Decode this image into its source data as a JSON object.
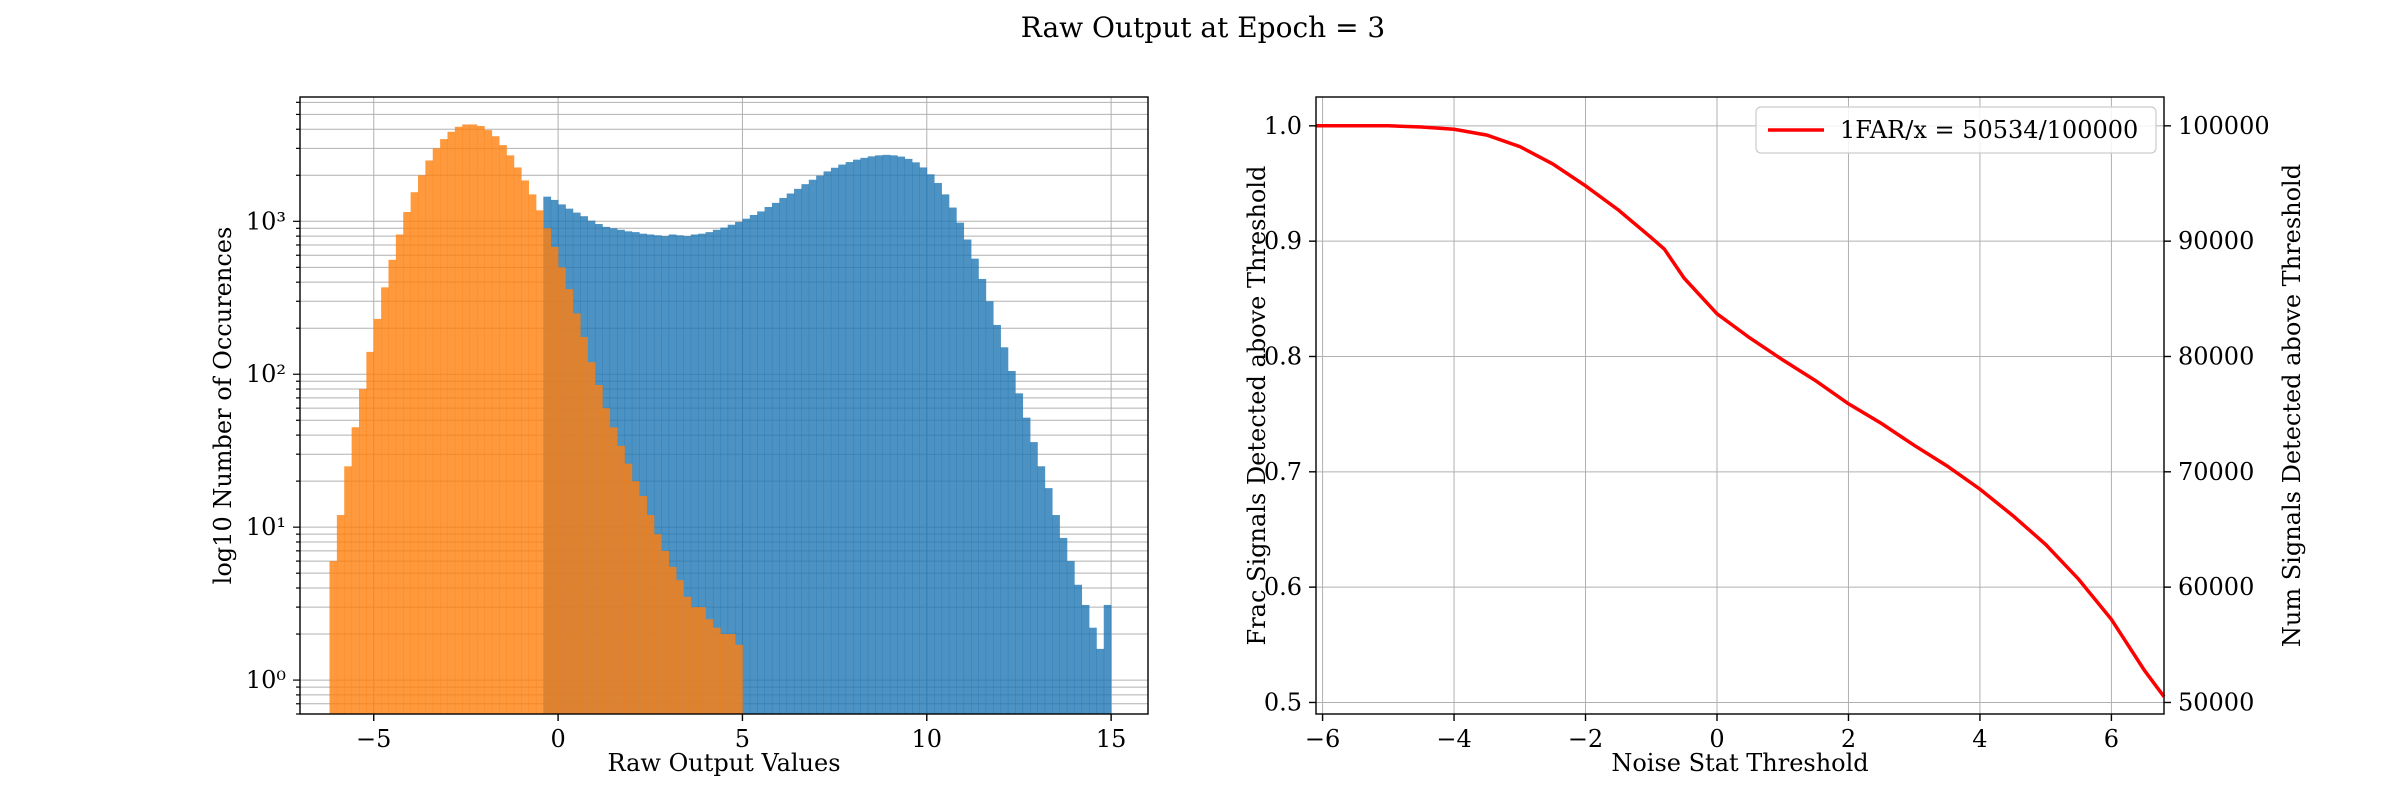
{
  "figure": {
    "title": "Raw Output at Epoch = 3"
  },
  "chart_data": [
    {
      "type": "histogram",
      "xlabel": "Raw Output Values",
      "ylabel": "log10 Number of Occurences",
      "yscale": "log",
      "xlim": [
        -7,
        16
      ],
      "ylim": [
        0.6,
        6500
      ],
      "xticks": [
        -5,
        0,
        5,
        10,
        15
      ],
      "yticks": [
        1,
        10,
        100,
        1000
      ],
      "ytick_labels": [
        "10⁰",
        "10¹",
        "10²",
        "10³"
      ],
      "grid": true,
      "bin_width": 0.2,
      "colors": {
        "signal": "#1f77b4",
        "noise": "#ff7f0e"
      },
      "series": [
        {
          "id": "signal",
          "color": "#1f77b4",
          "alpha": 0.8,
          "bins": [
            [
              -0.4,
              1450
            ],
            [
              -0.2,
              1380
            ],
            [
              0.0,
              1290
            ],
            [
              0.2,
              1210
            ],
            [
              0.4,
              1140
            ],
            [
              0.6,
              1080
            ],
            [
              0.8,
              1010
            ],
            [
              1.0,
              960
            ],
            [
              1.2,
              920
            ],
            [
              1.4,
              900
            ],
            [
              1.6,
              880
            ],
            [
              1.8,
              860
            ],
            [
              2.0,
              850
            ],
            [
              2.2,
              830
            ],
            [
              2.4,
              820
            ],
            [
              2.6,
              810
            ],
            [
              2.8,
              800
            ],
            [
              3.0,
              820
            ],
            [
              3.2,
              810
            ],
            [
              3.4,
              800
            ],
            [
              3.6,
              820
            ],
            [
              3.8,
              830
            ],
            [
              4.0,
              850
            ],
            [
              4.2,
              880
            ],
            [
              4.4,
              910
            ],
            [
              4.6,
              950
            ],
            [
              4.8,
              990
            ],
            [
              5.0,
              1040
            ],
            [
              5.2,
              1100
            ],
            [
              5.4,
              1160
            ],
            [
              5.6,
              1240
            ],
            [
              5.8,
              1320
            ],
            [
              6.0,
              1420
            ],
            [
              6.2,
              1520
            ],
            [
              6.4,
              1630
            ],
            [
              6.6,
              1750
            ],
            [
              6.8,
              1870
            ],
            [
              7.0,
              1990
            ],
            [
              7.2,
              2120
            ],
            [
              7.4,
              2240
            ],
            [
              7.6,
              2350
            ],
            [
              7.8,
              2440
            ],
            [
              8.0,
              2530
            ],
            [
              8.2,
              2600
            ],
            [
              8.4,
              2660
            ],
            [
              8.6,
              2700
            ],
            [
              8.8,
              2720
            ],
            [
              9.0,
              2700
            ],
            [
              9.2,
              2650
            ],
            [
              9.4,
              2560
            ],
            [
              9.6,
              2430
            ],
            [
              9.8,
              2250
            ],
            [
              10.0,
              2030
            ],
            [
              10.2,
              1780
            ],
            [
              10.4,
              1500
            ],
            [
              10.6,
              1230
            ],
            [
              10.8,
              980
            ],
            [
              11.0,
              760
            ],
            [
              11.2,
              570
            ],
            [
              11.4,
              420
            ],
            [
              11.6,
              300
            ],
            [
              11.8,
              210
            ],
            [
              12.0,
              150
            ],
            [
              12.2,
              105
            ],
            [
              12.4,
              75
            ],
            [
              12.6,
              52
            ],
            [
              12.8,
              36
            ],
            [
              13.0,
              25
            ],
            [
              13.2,
              18
            ],
            [
              13.4,
              12
            ],
            [
              13.6,
              8.5
            ],
            [
              13.8,
              6
            ],
            [
              14.0,
              4.2
            ],
            [
              14.2,
              3.1
            ],
            [
              14.4,
              2.2
            ],
            [
              14.6,
              1.6
            ],
            [
              14.8,
              3.1
            ]
          ]
        },
        {
          "id": "noise",
          "color": "#ff7f0e",
          "alpha": 0.8,
          "bins": [
            [
              -6.2,
              6
            ],
            [
              -6.0,
              12
            ],
            [
              -5.8,
              25
            ],
            [
              -5.6,
              45
            ],
            [
              -5.4,
              80
            ],
            [
              -5.2,
              140
            ],
            [
              -5.0,
              230
            ],
            [
              -4.8,
              370
            ],
            [
              -4.6,
              560
            ],
            [
              -4.4,
              820
            ],
            [
              -4.2,
              1150
            ],
            [
              -4.0,
              1550
            ],
            [
              -3.8,
              2000
            ],
            [
              -3.6,
              2500
            ],
            [
              -3.4,
              3000
            ],
            [
              -3.2,
              3450
            ],
            [
              -3.0,
              3850
            ],
            [
              -2.8,
              4150
            ],
            [
              -2.6,
              4300
            ],
            [
              -2.4,
              4300
            ],
            [
              -2.2,
              4200
            ],
            [
              -2.0,
              3950
            ],
            [
              -1.8,
              3600
            ],
            [
              -1.6,
              3150
            ],
            [
              -1.4,
              2700
            ],
            [
              -1.2,
              2250
            ],
            [
              -1.0,
              1850
            ],
            [
              -0.8,
              1500
            ],
            [
              -0.6,
              1180
            ],
            [
              -0.4,
              900
            ],
            [
              -0.2,
              680
            ],
            [
              0.0,
              500
            ],
            [
              0.2,
              360
            ],
            [
              0.4,
              250
            ],
            [
              0.6,
              175
            ],
            [
              0.8,
              120
            ],
            [
              1.0,
              85
            ],
            [
              1.2,
              60
            ],
            [
              1.4,
              45
            ],
            [
              1.6,
              34
            ],
            [
              1.8,
              26
            ],
            [
              2.0,
              20
            ],
            [
              2.2,
              16
            ],
            [
              2.4,
              12
            ],
            [
              2.6,
              9
            ],
            [
              2.8,
              7
            ],
            [
              3.0,
              5.5
            ],
            [
              3.2,
              4.5
            ],
            [
              3.4,
              3.5
            ],
            [
              3.6,
              3
            ],
            [
              3.8,
              3
            ],
            [
              4.0,
              2.5
            ],
            [
              4.2,
              2.2
            ],
            [
              4.4,
              2
            ],
            [
              4.6,
              2
            ],
            [
              4.8,
              1.7
            ]
          ]
        }
      ],
      "overlap_color": "#e4853a"
    },
    {
      "type": "line",
      "xlabel": "Noise Stat Threshold",
      "ylabel": "Frac Signals Detected above Threshold",
      "ylabel_right": "Num Signals Detected above Threshold",
      "xlim": [
        -6.1,
        6.8
      ],
      "ylim": [
        0.49,
        1.025
      ],
      "ylim_right": [
        49000,
        102500
      ],
      "xticks": [
        -6,
        -4,
        -2,
        0,
        2,
        4,
        6
      ],
      "yticks": [
        0.5,
        0.6,
        0.7,
        0.8,
        0.9,
        1.0
      ],
      "yticks_right": [
        50000,
        60000,
        70000,
        80000,
        90000,
        100000
      ],
      "grid": true,
      "legend_position": "top-right",
      "series": [
        {
          "name": "1FAR/x = 50534/100000",
          "color": "#ff0000",
          "x": [
            -6.1,
            -5.5,
            -5.0,
            -4.5,
            -4.0,
            -3.5,
            -3.0,
            -2.5,
            -2.0,
            -1.5,
            -1.0,
            -0.8,
            -0.5,
            0.0,
            0.5,
            1.0,
            1.5,
            2.0,
            2.5,
            3.0,
            3.5,
            4.0,
            4.5,
            5.0,
            5.5,
            6.0,
            6.5,
            6.8
          ],
          "y": [
            1.0,
            1.0,
            1.0,
            0.999,
            0.997,
            0.992,
            0.982,
            0.967,
            0.948,
            0.927,
            0.903,
            0.893,
            0.868,
            0.837,
            0.816,
            0.797,
            0.779,
            0.759,
            0.742,
            0.723,
            0.705,
            0.685,
            0.662,
            0.637,
            0.607,
            0.572,
            0.528,
            0.505
          ]
        }
      ]
    }
  ]
}
